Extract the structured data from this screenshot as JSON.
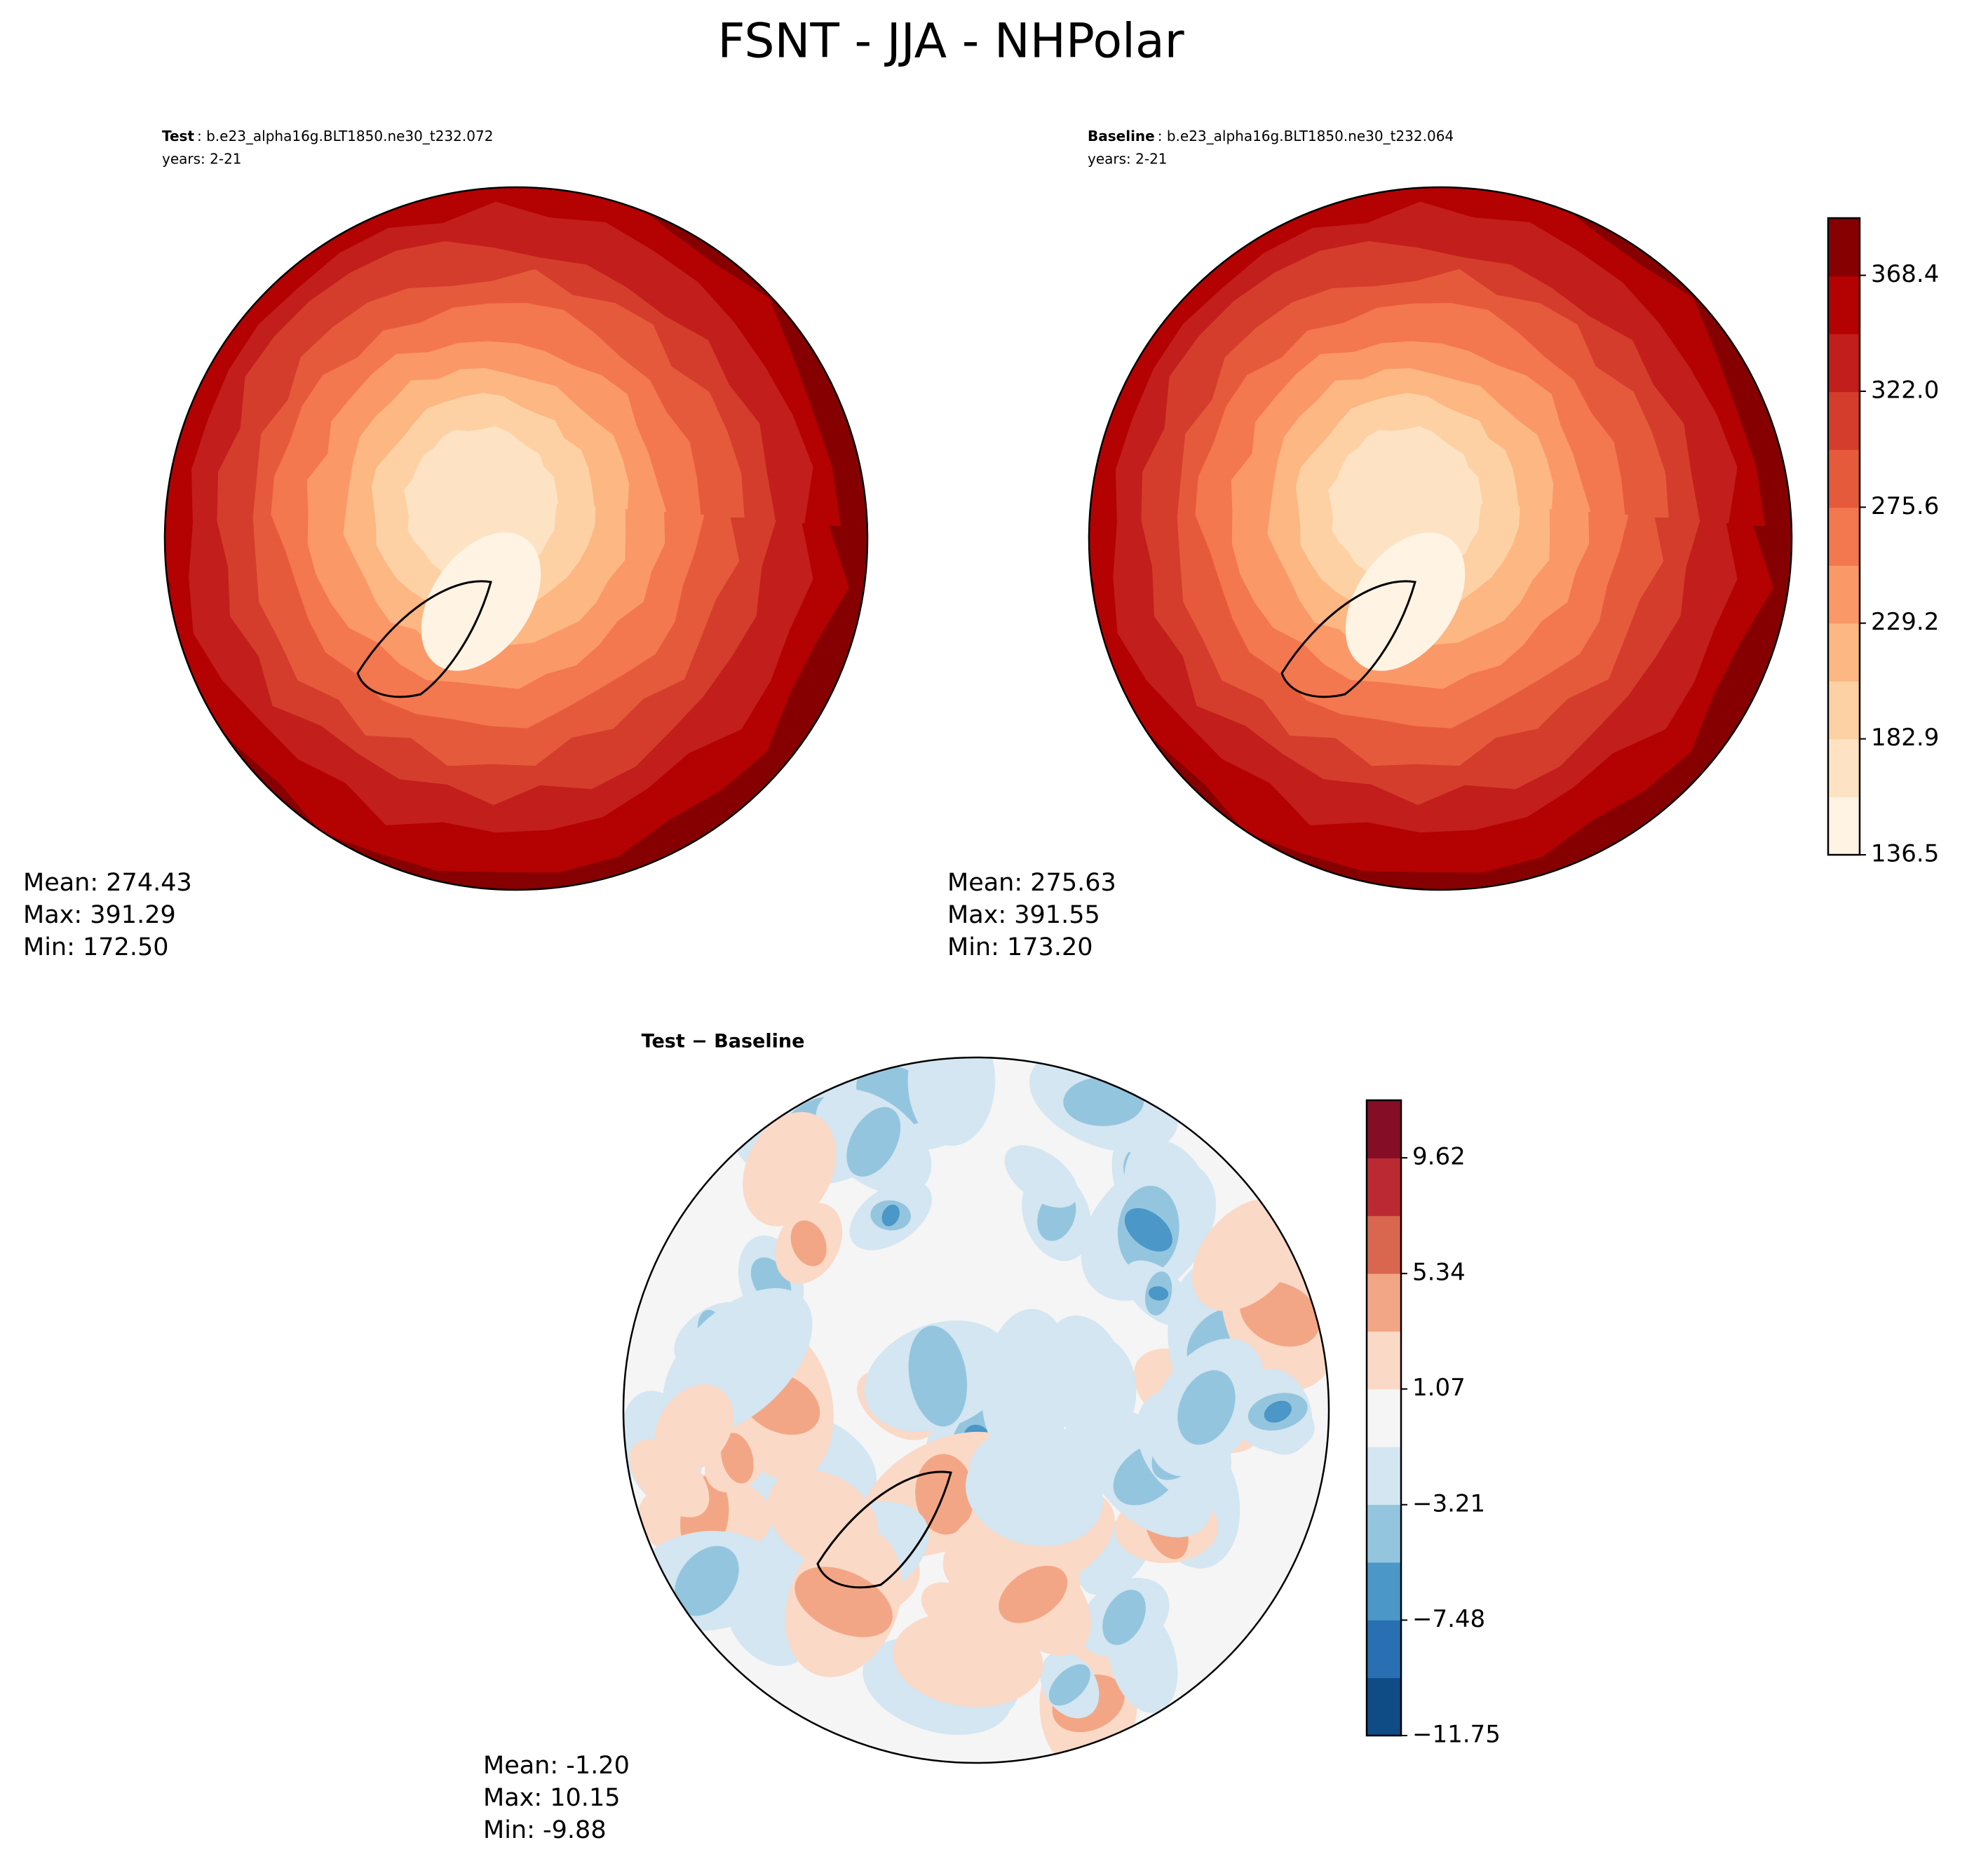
{
  "title": "FSNT - JJA - NHPolar",
  "panels": [
    {
      "label": "Test",
      "case": ": b.e23_alpha16g.BLT1850.ne30_t232.072",
      "years": "years: 2-21",
      "stats": [
        "Mean: 274.43",
        "Max: 391.29",
        "Min: 172.50"
      ]
    },
    {
      "label": "Baseline",
      "case": ": b.e23_alpha16g.BLT1850.ne30_t232.064",
      "years": "years: 2-21",
      "stats": [
        "Mean: 275.63",
        "Max: 391.55",
        "Min: 173.20"
      ]
    }
  ],
  "diff": {
    "title": "Test − Baseline",
    "stats": [
      "Mean: -1.20",
      "Max: 10.15",
      "Min: -9.88"
    ]
  },
  "colorbars": [
    {
      "lim": [
        136.5,
        391.3
      ],
      "ticks": [
        136.5,
        182.9,
        229.2,
        275.6,
        {
          "value": 322.0,
          "label": "322.0"
        },
        368.4
      ],
      "colors": [
        "#fff3e3",
        "#fde3c3",
        "#fdd1a3",
        "#fcb783",
        "#fb9868",
        "#f3774f",
        "#e65a3c",
        "#d43d2b",
        "#c21e1b",
        "#b30201",
        "#860001"
      ]
    },
    {
      "lim": [
        -11.75,
        11.75
      ],
      "ticks": [
        {
          "value": -11.75,
          "label": "−11.75"
        },
        {
          "value": -7.48,
          "label": "−7.48"
        },
        {
          "value": -3.21,
          "label": "−3.21"
        },
        1.07,
        5.34,
        9.62
      ],
      "colors": [
        "#0f4b85",
        "#2870b2",
        "#4a97c8",
        "#94c5df",
        "#d3e6f1",
        "#f5f5f5",
        "#fbd9c7",
        "#f3a685",
        "#d9664f",
        "#bb2a32",
        "#850d25"
      ]
    }
  ]
}
